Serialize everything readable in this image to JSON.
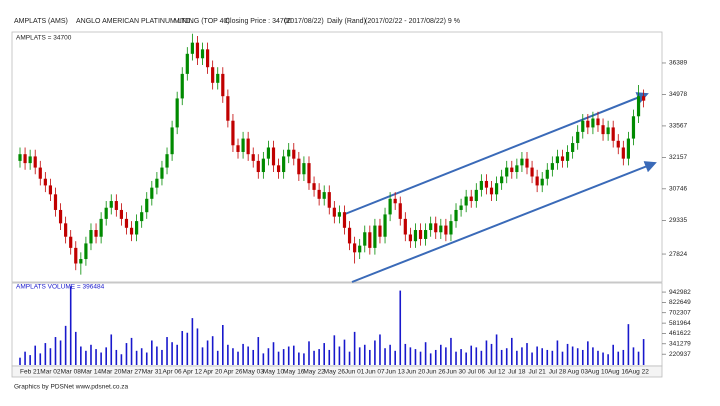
{
  "header": [
    "AMPLATS",
    "(AMS)",
    "ANGLO AMERICAN PLATINUM LTD.",
    "MINING (TOP 40)",
    "Closing Price : 34700",
    "(2017/08/22)",
    "Daily (Rand)",
    "(2017/02/22 - 2017/08/22) 9 %"
  ],
  "footer": "Graphics by PDSNet www.pdsnet.co.za",
  "chart_data": [
    {
      "type": "candlestick",
      "label": "AMPLATS = 34700",
      "up_color": "#008a00",
      "down_color": "#c00000",
      "ylim": [
        26615,
        37733
      ],
      "yticks": [
        36389,
        34978,
        33567,
        32157,
        30746,
        29335,
        27824
      ],
      "open": [
        32000,
        32300,
        31900,
        32200,
        31700,
        31200,
        30900,
        30500,
        29800,
        29200,
        28600,
        28100,
        27400,
        27600,
        28300,
        28900,
        28600,
        29400,
        29900,
        30200,
        29800,
        29400,
        29000,
        28700,
        29300,
        29700,
        30300,
        30800,
        31200,
        31700,
        32300,
        33500,
        34800,
        35900,
        36800,
        37300,
        36600,
        37000,
        36200,
        35500,
        35900,
        34900,
        33800,
        32700,
        32400,
        33000,
        32300,
        32000,
        31500,
        32100,
        32600,
        31800,
        31500,
        32200,
        32500,
        32100,
        31400,
        31900,
        31000,
        30700,
        30300,
        30600,
        29900,
        29500,
        29700,
        29000,
        28300,
        27900,
        28200,
        28800,
        28100,
        29100,
        28600,
        29600,
        30300,
        30100,
        29400,
        28700,
        28400,
        28900,
        28500,
        28900,
        29200,
        28800,
        29100,
        28700,
        29300,
        29800,
        30000,
        30400,
        30200,
        30700,
        31100,
        30800,
        30500,
        31000,
        31300,
        31700,
        31500,
        31800,
        32100,
        31700,
        31300,
        30900,
        31200,
        31600,
        31900,
        32200,
        32000,
        32400,
        32800,
        33300,
        33800,
        33500,
        33900,
        33600,
        33200,
        33500,
        32900,
        32600,
        32100,
        33000,
        34000,
        34900
      ],
      "high": [
        32600,
        32600,
        32500,
        32500,
        32000,
        31500,
        31200,
        30800,
        30100,
        29500,
        28900,
        28400,
        27900,
        28600,
        29200,
        29200,
        29700,
        30200,
        30500,
        30500,
        30100,
        29700,
        29300,
        29600,
        30000,
        30600,
        31100,
        31500,
        32000,
        32600,
        33800,
        35100,
        36200,
        37100,
        37700,
        37600,
        37300,
        37300,
        36500,
        36200,
        36200,
        35200,
        34100,
        33000,
        33300,
        33300,
        32600,
        32300,
        32400,
        32900,
        32900,
        32100,
        32500,
        32800,
        32800,
        32400,
        32200,
        32200,
        31300,
        31000,
        30900,
        30900,
        30200,
        30000,
        30000,
        29300,
        28600,
        28500,
        29100,
        29100,
        29400,
        29400,
        29900,
        30600,
        30600,
        30400,
        29700,
        29000,
        29200,
        29200,
        29200,
        29500,
        29500,
        29400,
        29400,
        29600,
        30100,
        30300,
        30700,
        30700,
        31000,
        31400,
        31400,
        31100,
        31300,
        31600,
        32000,
        32000,
        32100,
        32400,
        32400,
        32000,
        31600,
        31500,
        31900,
        32200,
        32500,
        32500,
        32700,
        33100,
        33600,
        34100,
        34100,
        34200,
        34200,
        33900,
        33800,
        33800,
        33200,
        32900,
        33300,
        34300,
        35400,
        35200
      ],
      "low": [
        31700,
        31600,
        31600,
        31400,
        30900,
        30600,
        30200,
        29500,
        28900,
        28300,
        27800,
        27100,
        26900,
        27300,
        28000,
        28300,
        28300,
        29100,
        29600,
        29500,
        29100,
        28700,
        28400,
        28400,
        29000,
        29400,
        30000,
        30500,
        30900,
        31400,
        32000,
        33200,
        34500,
        35600,
        36500,
        36300,
        36300,
        35900,
        35200,
        35200,
        34600,
        33500,
        32400,
        32100,
        32100,
        32000,
        31700,
        31200,
        31200,
        31800,
        31500,
        31200,
        31200,
        31900,
        31800,
        31100,
        31100,
        30700,
        30400,
        30000,
        30000,
        29600,
        29200,
        29200,
        28700,
        28000,
        27400,
        27600,
        27900,
        27800,
        27800,
        28300,
        28300,
        29300,
        29800,
        29100,
        28400,
        28100,
        28100,
        28200,
        28200,
        28600,
        28500,
        28500,
        28400,
        28400,
        29000,
        29500,
        29700,
        29900,
        29900,
        30400,
        30500,
        30200,
        30200,
        30700,
        31000,
        31200,
        31200,
        31500,
        31400,
        31000,
        30600,
        30600,
        30900,
        31300,
        31600,
        31700,
        31700,
        32100,
        32500,
        33000,
        33200,
        33200,
        33300,
        32900,
        32900,
        32600,
        32300,
        31800,
        31800,
        32700,
        33700,
        34400
      ],
      "close": [
        32300,
        31900,
        32200,
        31700,
        31200,
        30900,
        30500,
        29800,
        29200,
        28600,
        28100,
        27400,
        27600,
        28300,
        28900,
        28600,
        29400,
        29900,
        30200,
        29800,
        29400,
        29000,
        28700,
        29300,
        29700,
        30300,
        30800,
        31200,
        31700,
        32300,
        33500,
        34800,
        35900,
        36800,
        37300,
        36600,
        37000,
        36200,
        35500,
        35900,
        34900,
        33800,
        32700,
        32400,
        33000,
        32300,
        32000,
        31500,
        32100,
        32600,
        31800,
        31500,
        32200,
        32500,
        32100,
        31400,
        31900,
        31000,
        30700,
        30300,
        30600,
        29900,
        29500,
        29700,
        29000,
        28300,
        27900,
        28200,
        28800,
        28100,
        29100,
        28600,
        29600,
        30300,
        30100,
        29400,
        28700,
        28400,
        28900,
        28500,
        28900,
        29200,
        28800,
        29100,
        28700,
        29300,
        29800,
        30000,
        30400,
        30200,
        30700,
        31100,
        30800,
        30500,
        31000,
        31300,
        31700,
        31500,
        31800,
        32100,
        31700,
        31300,
        30900,
        31200,
        31600,
        31900,
        32200,
        32000,
        32400,
        32800,
        33300,
        33800,
        33500,
        33900,
        33600,
        33200,
        33500,
        32900,
        32600,
        32100,
        33000,
        34000,
        34900,
        34700
      ]
    },
    {
      "type": "bar",
      "label": "AMPLATS VOLUME = 396484",
      "color": "#1818cc",
      "ylim": [
        95000,
        1025000
      ],
      "yticks": [
        942982,
        822649,
        702307,
        581964,
        461622,
        341279,
        220937
      ],
      "categories": [
        null,
        null,
        "Feb 21",
        null,
        null,
        null,
        "Mar 02",
        null,
        null,
        null,
        "Mar 08",
        null,
        null,
        null,
        "Mar 14",
        null,
        null,
        null,
        "Mar 20",
        null,
        null,
        null,
        "Mar 27",
        null,
        null,
        null,
        "Mar 31",
        null,
        null,
        null,
        "Apr 06",
        null,
        null,
        null,
        "Apr 12",
        null,
        null,
        null,
        "Apr 20",
        null,
        null,
        null,
        "Apr 26",
        null,
        null,
        null,
        "May 03",
        null,
        null,
        null,
        "May 10",
        null,
        null,
        null,
        "May 16",
        null,
        null,
        null,
        "May 22",
        null,
        null,
        null,
        "May 26",
        null,
        null,
        null,
        "Jun 01",
        null,
        null,
        null,
        "Jun 07",
        null,
        null,
        null,
        "Jun 13",
        null,
        null,
        null,
        "Jun 20",
        null,
        null,
        null,
        "Jun 26",
        null,
        null,
        null,
        "Jun 30",
        null,
        null,
        null,
        "Jul 06",
        null,
        null,
        null,
        "Jul 12",
        null,
        null,
        null,
        "Jul 18",
        null,
        null,
        null,
        "Jul 21",
        null,
        null,
        null,
        "Jul 28",
        null,
        null,
        null,
        "Aug 03",
        null,
        null,
        null,
        "Aug 10",
        null,
        null,
        null,
        "Aug 16",
        null,
        null,
        null,
        "Aug 22",
        null
      ],
      "values": [
        180000,
        250000,
        210000,
        320000,
        230000,
        350000,
        290000,
        420000,
        380000,
        550000,
        1010000,
        480000,
        310000,
        260000,
        330000,
        280000,
        240000,
        300000,
        450000,
        270000,
        220000,
        350000,
        410000,
        260000,
        290000,
        240000,
        380000,
        310000,
        270000,
        420000,
        360000,
        330000,
        490000,
        470000,
        640000,
        520000,
        300000,
        380000,
        430000,
        260000,
        560000,
        330000,
        290000,
        250000,
        340000,
        310000,
        270000,
        420000,
        230000,
        290000,
        360000,
        250000,
        280000,
        310000,
        320000,
        240000,
        230000,
        370000,
        260000,
        280000,
        350000,
        270000,
        440000,
        310000,
        390000,
        250000,
        480000,
        300000,
        330000,
        270000,
        380000,
        450000,
        290000,
        330000,
        260000,
        960000,
        340000,
        300000,
        280000,
        250000,
        360000,
        230000,
        270000,
        330000,
        300000,
        410000,
        250000,
        280000,
        240000,
        320000,
        300000,
        260000,
        380000,
        340000,
        450000,
        270000,
        290000,
        410000,
        260000,
        300000,
        350000,
        240000,
        310000,
        290000,
        270000,
        260000,
        380000,
        250000,
        340000,
        310000,
        290000,
        270000,
        370000,
        300000,
        260000,
        240000,
        220000,
        330000,
        250000,
        270000,
        570000,
        300000,
        250000,
        396484
      ]
    }
  ]
}
